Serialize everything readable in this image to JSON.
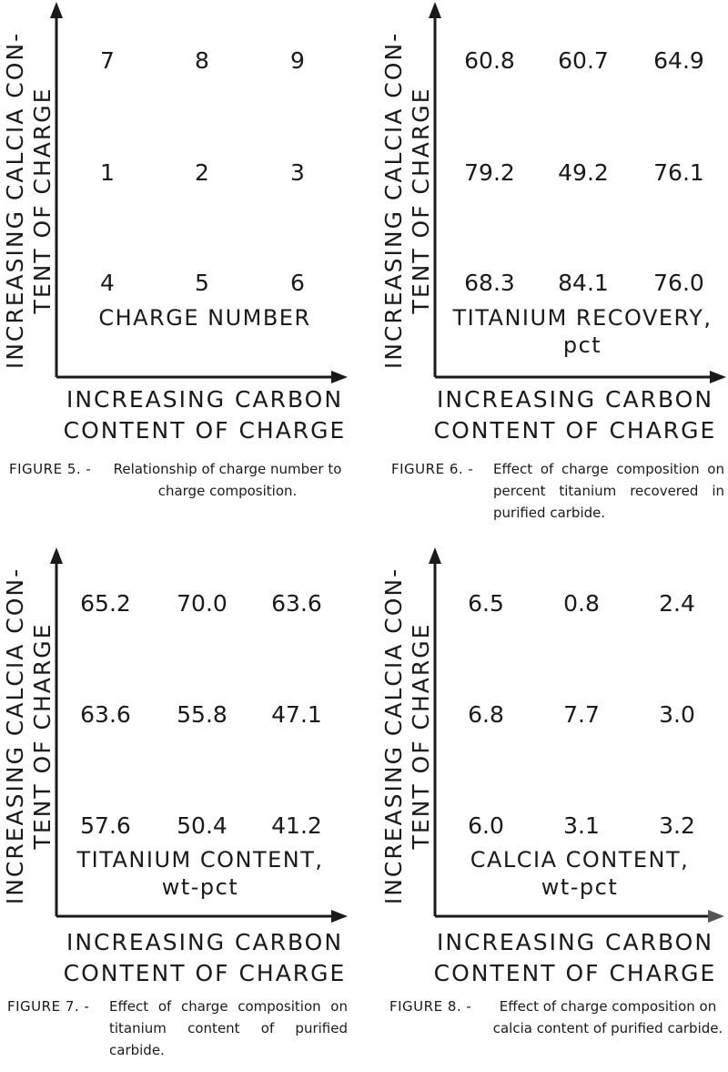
{
  "figures": [
    {
      "y_title": [
        "INCREASING CALCIA CON-",
        "TENT OF CHARGE"
      ],
      "x_title": [
        "INCREASING CARBON",
        "CONTENT OF CHARGE"
      ],
      "measure": [
        "CHARGE NUMBER",
        ""
      ],
      "rows": [
        [
          "7",
          "8",
          "9"
        ],
        [
          "1",
          "2",
          "3"
        ],
        [
          "4",
          "5",
          "6"
        ]
      ],
      "caption_label": "FIGURE 5. -",
      "caption_text": "Relationship of charge number to charge composition."
    },
    {
      "y_title": [
        "INCREASING CALCIA CON-",
        "TENT OF CHARGE"
      ],
      "x_title": [
        "INCREASING CARBON",
        "CONTENT OF CHARGE"
      ],
      "measure": [
        "TITANIUM RECOVERY,",
        "pct"
      ],
      "rows": [
        [
          "60.8",
          "60.7",
          "64.9"
        ],
        [
          "79.2",
          "49.2",
          "76.1"
        ],
        [
          "68.3",
          "84.1",
          "76.0"
        ]
      ],
      "caption_label": "FIGURE 6. -",
      "caption_text": "Effect of charge composition on percent titanium recovered in purified carbide."
    },
    {
      "y_title": [
        "INCREASING CALCIA CON-",
        "TENT OF CHARGE"
      ],
      "x_title": [
        "INCREASING CARBON",
        "CONTENT OF CHARGE"
      ],
      "measure": [
        "TITANIUM CONTENT,",
        "wt-pct"
      ],
      "rows": [
        [
          "65.2",
          "70.0",
          "63.6"
        ],
        [
          "63.6",
          "55.8",
          "47.1"
        ],
        [
          "57.6",
          "50.4",
          "41.2"
        ]
      ],
      "caption_label": "FIGURE 7. -",
      "caption_text": "Effect of charge composition on titanium content of purified carbide."
    },
    {
      "y_title": [
        "INCREASING CALCIA CON-",
        "TENT OF CHARGE"
      ],
      "x_title": [
        "INCREASING CARBON",
        "CONTENT OF CHARGE"
      ],
      "measure": [
        "CALCIA CONTENT,",
        "wt-pct"
      ],
      "rows": [
        [
          "6.5",
          "0.8",
          "2.4"
        ],
        [
          "6.8",
          "7.7",
          "3.0"
        ],
        [
          "6.0",
          "3.1",
          "3.2"
        ]
      ],
      "caption_label": "FIGURE 8. -",
      "caption_text": "Effect of charge composition on calcia content of purified carbide."
    }
  ]
}
